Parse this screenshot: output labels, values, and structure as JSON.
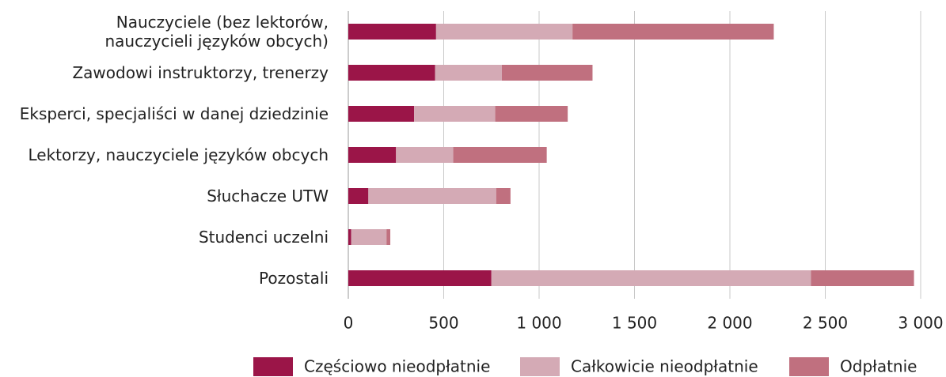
{
  "chart_data": {
    "type": "stacked_bar_horizontal",
    "categories": [
      "Nauczyciele (bez lektorów,\nnauczycieli języków obcych)",
      "Zawodowi instruktorzy, trenerzy",
      "Eksperci, specjaliści w danej dziedzinie",
      "Lektorzy, nauczyciele języków obcych",
      "Słuchacze UTW",
      "Studenci uczelni",
      "Pozostali"
    ],
    "series": [
      {
        "name": "Częściowo nieodpłatnie",
        "color": "#9b1548",
        "values": [
          460,
          455,
          345,
          250,
          105,
          15,
          750
        ]
      },
      {
        "name": "Całkowicie nieodpłatnie",
        "color": "#d4aab5",
        "values": [
          715,
          350,
          425,
          300,
          670,
          185,
          1675
        ]
      },
      {
        "name": "Odpłatnie",
        "color": "#c0707f",
        "values": [
          1055,
          475,
          380,
          490,
          75,
          20,
          540
        ]
      }
    ],
    "xlim": [
      0,
      3000
    ],
    "xticks": [
      0,
      500,
      {
        "value": 1000,
        "label": "1 000"
      },
      {
        "value": 1500,
        "label": "1 500"
      },
      {
        "value": 2000,
        "label": "2 000"
      },
      {
        "value": 2500,
        "label": "2 500"
      },
      {
        "value": 3000,
        "label": "3 000"
      }
    ],
    "grid": true,
    "legend": "bottom"
  }
}
